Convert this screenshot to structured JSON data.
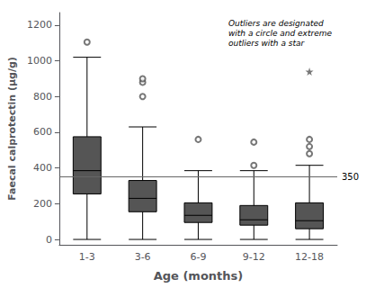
{
  "chart_data": {
    "type": "box",
    "xlabel": "Age (months)",
    "ylabel": "Faecal calprotectin (µg/g)",
    "annotation": "Outliers are designated\nwith a circle and extreme\noutliers with a star",
    "categories": [
      "1-3",
      "3-6",
      "6-9",
      "9-12",
      "12-18"
    ],
    "boxes": [
      {
        "q1": 255,
        "median": 385,
        "q3": 575,
        "whisker_low": 0,
        "whisker_high": 1020
      },
      {
        "q1": 155,
        "median": 230,
        "q3": 330,
        "whisker_low": 0,
        "whisker_high": 630
      },
      {
        "q1": 95,
        "median": 135,
        "q3": 205,
        "whisker_low": 0,
        "whisker_high": 385
      },
      {
        "q1": 80,
        "median": 110,
        "q3": 190,
        "whisker_low": 0,
        "whisker_high": 385
      },
      {
        "q1": 60,
        "median": 105,
        "q3": 205,
        "whisker_low": 0,
        "whisker_high": 415
      }
    ],
    "color": "#555555",
    "outliers": {
      "marker": "circle",
      "color": "#555555",
      "values": [
        [
          1105
        ],
        [
          800,
          880,
          900
        ],
        [
          560
        ],
        [
          415,
          545
        ],
        [
          480,
          520,
          560
        ]
      ]
    },
    "extreme_outliers": {
      "marker": "star",
      "color": "#555555",
      "values": [
        [],
        [],
        [],
        [],
        [
          940
        ]
      ]
    },
    "reference_line": {
      "value": 350,
      "label": "350",
      "color": "#666666"
    },
    "ylim": [
      -30,
      1270
    ],
    "yticks": [
      0,
      200,
      400,
      600,
      800,
      1000,
      1200
    ],
    "grid": false
  }
}
